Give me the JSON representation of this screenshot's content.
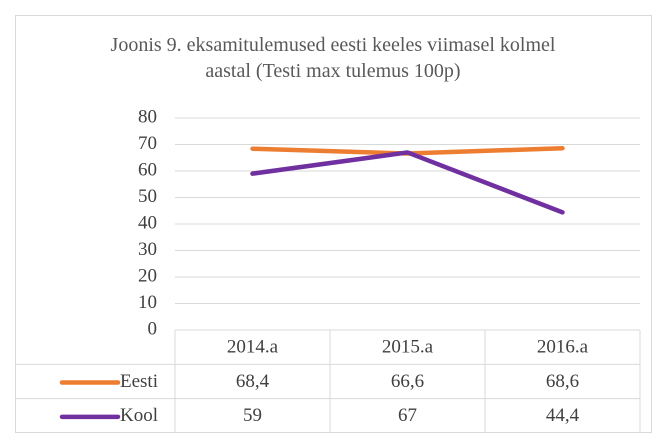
{
  "chart_data": {
    "type": "line",
    "title": "Joonis 9. eksamitulemused eesti keeles viimasel kolmel aastal (Testi max tulemus 100p)",
    "categories": [
      "2014.a",
      "2015.a",
      "2016.a"
    ],
    "series": [
      {
        "name": "Eesti",
        "color": "#ed7d31",
        "values": [
          68.4,
          66.6,
          68.6
        ],
        "value_labels": [
          "68,4",
          "66,6",
          "68,6"
        ]
      },
      {
        "name": "Kool",
        "color": "#7030a0",
        "values": [
          59,
          67,
          44.4
        ],
        "value_labels": [
          "59",
          "67",
          "44,4"
        ]
      }
    ],
    "ylim": [
      0,
      80
    ],
    "yticks": [
      0,
      10,
      20,
      30,
      40,
      50,
      60,
      70,
      80
    ],
    "grid": true
  }
}
